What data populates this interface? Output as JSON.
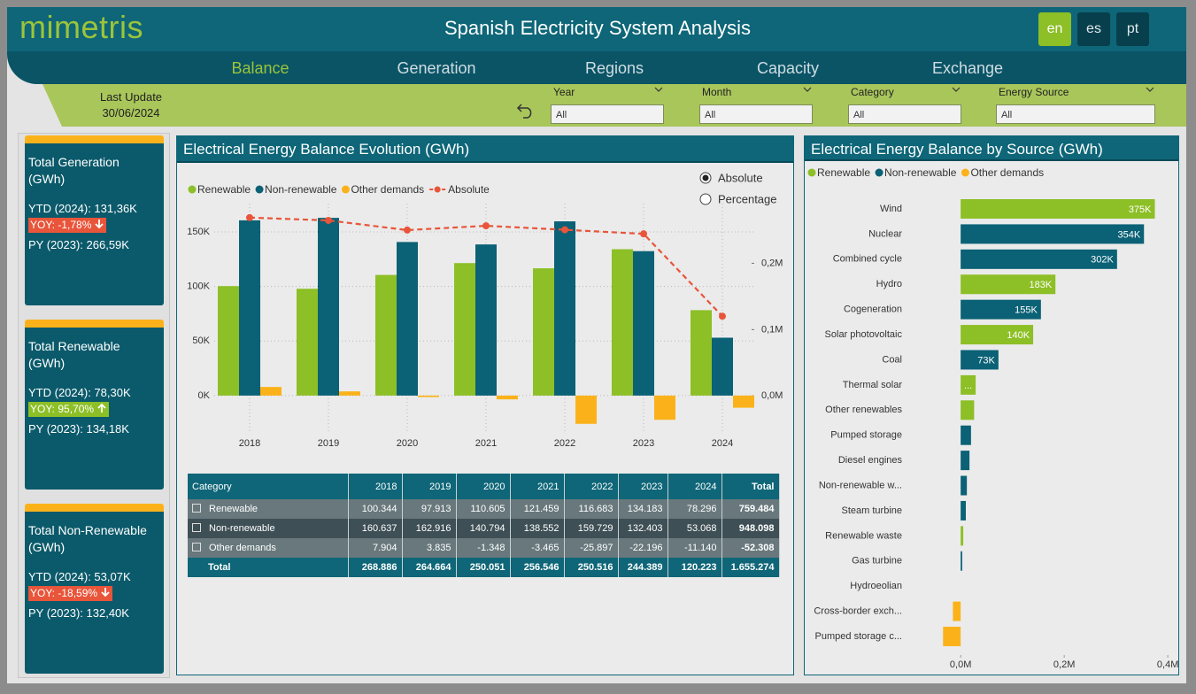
{
  "header": {
    "logo": "mimetris",
    "title": "Spanish Electricity System Analysis",
    "languages": [
      "en",
      "es",
      "pt"
    ],
    "active_language": 0,
    "nav": [
      "Balance",
      "Generation",
      "Regions",
      "Capacity",
      "Exchange"
    ],
    "active_nav": 0
  },
  "last_update": {
    "label": "Last Update",
    "date": "30/06/2024"
  },
  "filters": [
    {
      "label": "Year",
      "value": "All"
    },
    {
      "label": "Month",
      "value": "All"
    },
    {
      "label": "Category",
      "value": "All"
    },
    {
      "label": "Energy Source",
      "value": "All"
    }
  ],
  "kpis": [
    {
      "title": "Total Generation (GWh)",
      "ytd": "YTD (2024): 131,36K",
      "yoy": "YOY: -1,78%",
      "yoy_color": "#e8553a",
      "trend": "down",
      "py": "PY (2023): 266,59K"
    },
    {
      "title": "Total Renewable (GWh)",
      "ytd": "YTD (2024): 78,30K",
      "yoy": "YOY: 95,70%",
      "yoy_color": "#8dbf26",
      "trend": "up",
      "py": "PY (2023): 134,18K"
    },
    {
      "title": "Total Non-Renewable (GWh)",
      "ytd": "YTD (2024): 53,07K",
      "yoy": "YOY: -18,59%",
      "yoy_color": "#e8553a",
      "trend": "down",
      "py": "PY (2023): 132,40K"
    }
  ],
  "chart_data": [
    {
      "type": "combo",
      "title": "Electrical Energy Balance Evolution (GWh)",
      "categories": [
        "2018",
        "2019",
        "2020",
        "2021",
        "2022",
        "2023",
        "2024"
      ],
      "series": [
        {
          "name": "Renewable",
          "type": "bar",
          "color": "#8dbf26",
          "values": [
            100344,
            97913,
            110605,
            121459,
            116683,
            134183,
            78296
          ]
        },
        {
          "name": "Non-renewable",
          "type": "bar",
          "color": "#0b6175",
          "values": [
            160637,
            162916,
            140794,
            138552,
            159729,
            132403,
            53068
          ]
        },
        {
          "name": "Other demands",
          "type": "bar",
          "color": "#fbb21a",
          "values": [
            7904,
            3835,
            -1348,
            -3465,
            -25897,
            -22196,
            -11140
          ]
        },
        {
          "name": "Absolute",
          "type": "line",
          "axis": "y2",
          "dashed": true,
          "color": "#e8553a",
          "values": [
            268886,
            264664,
            250051,
            256546,
            250516,
            244389,
            120223
          ]
        }
      ],
      "ylim": [
        -35000,
        176000
      ],
      "yticks": [
        {
          "value": 0,
          "label": "0K"
        },
        {
          "value": 50000,
          "label": "50K"
        },
        {
          "value": 100000,
          "label": "100K"
        },
        {
          "value": 150000,
          "label": "150K"
        }
      ],
      "y2lim": [
        -57000,
        290000
      ],
      "y2ticks": [
        {
          "value": 0,
          "label": "0,0M"
        },
        {
          "value": 100000,
          "label": "0,1M"
        },
        {
          "value": 200000,
          "label": "0,2M"
        }
      ],
      "grid": true,
      "options": [
        "Absolute",
        "Percentage"
      ],
      "selected_option": 0
    },
    {
      "type": "barh",
      "title": "Electrical Energy Balance by Source (GWh)",
      "categories": [
        "Wind",
        "Nuclear",
        "Combined cycle",
        "Hydro",
        "Cogeneration",
        "Solar photovoltaic",
        "Coal",
        "Thermal solar",
        "Other renewables",
        "Pumped storage",
        "Diesel engines",
        "Non-renewable w...",
        "Steam turbine",
        "Renewable waste",
        "Gas turbine",
        "Hydroeolian",
        "Cross-border exch...",
        "Pumped storage c..."
      ],
      "series": [
        {
          "name": "Renewable",
          "color": "#8dbf26",
          "values": [
            375000,
            null,
            null,
            183000,
            null,
            140000,
            null,
            29000,
            26000,
            null,
            null,
            null,
            null,
            5000,
            null,
            0,
            null,
            null
          ],
          "value_labels": [
            "375K",
            null,
            null,
            "183K",
            null,
            "140K",
            null,
            "...",
            null,
            null,
            null,
            null,
            null,
            null,
            null,
            null,
            null,
            null
          ]
        },
        {
          "name": "Non-renewable",
          "color": "#0b6175",
          "values": [
            null,
            354000,
            302000,
            null,
            155000,
            null,
            73000,
            null,
            null,
            20000,
            17000,
            12000,
            10000,
            null,
            3000,
            null,
            null,
            null
          ],
          "value_labels": [
            null,
            "354K",
            "302K",
            null,
            "155K",
            null,
            "73K",
            null,
            null,
            null,
            null,
            null,
            null,
            null,
            null,
            null,
            null,
            null
          ]
        },
        {
          "name": "Other demands",
          "color": "#fbb21a",
          "values": [
            null,
            null,
            null,
            null,
            null,
            null,
            null,
            null,
            null,
            null,
            null,
            null,
            null,
            null,
            null,
            null,
            -15000,
            -34000
          ]
        }
      ],
      "xlim": [
        -43000,
        410000
      ],
      "xticks": [
        {
          "value": 0,
          "label": "0,0M"
        },
        {
          "value": 200000,
          "label": "0,2M"
        },
        {
          "value": 400000,
          "label": "0,4M"
        }
      ],
      "grid": false
    }
  ],
  "table": {
    "header": [
      "Category",
      "2018",
      "2019",
      "2020",
      "2021",
      "2022",
      "2023",
      "2024",
      "Total"
    ],
    "rows": [
      [
        "Renewable",
        "100.344",
        "97.913",
        "110.605",
        "121.459",
        "116.683",
        "134.183",
        "78.296",
        "759.484"
      ],
      [
        "Non-renewable",
        "160.637",
        "162.916",
        "140.794",
        "138.552",
        "159.729",
        "132.403",
        "53.068",
        "948.098"
      ],
      [
        "Other demands",
        "7.904",
        "3.835",
        "-1.348",
        "-3.465",
        "-25.897",
        "-22.196",
        "-11.140",
        "-52.308"
      ]
    ],
    "total": [
      "Total",
      "268.886",
      "264.664",
      "250.051",
      "256.546",
      "250.516",
      "244.389",
      "120.223",
      "1.655.274"
    ]
  }
}
